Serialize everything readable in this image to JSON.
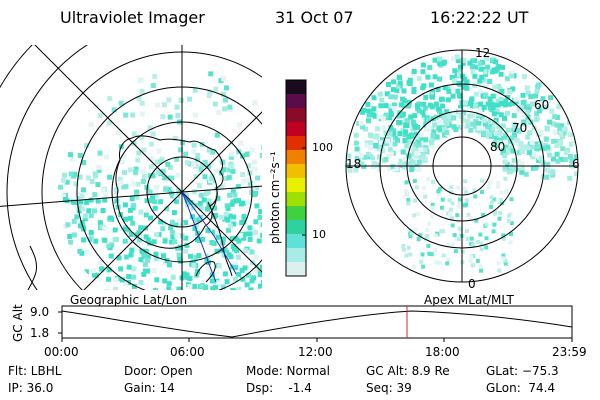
{
  "header": {
    "title": "Ultraviolet Imager",
    "date": "31 Oct 07",
    "time": "16:22:22 UT"
  },
  "colorbar": {
    "label": "photon cm⁻²s⁻¹",
    "ticks": [
      "100",
      "10"
    ],
    "colors": [
      "#1a0a1e",
      "#5a0c4a",
      "#8a0a2a",
      "#c00020",
      "#e03000",
      "#f08000",
      "#f0c000",
      "#e8f000",
      "#a0e000",
      "#40d040",
      "#30d0a0",
      "#60e0d8",
      "#a8ece8",
      "#dcf0f0"
    ]
  },
  "left_map": {
    "label": "Geographic Lat/Lon"
  },
  "right_map": {
    "label": "Apex MLat/MLT",
    "mlt_labels": {
      "top": "12",
      "left": "18",
      "right": "6",
      "bottom": "0"
    },
    "lat_labels": [
      "60",
      "70",
      "80"
    ]
  },
  "plot": {
    "ylabel": "GC Alt",
    "y_ticks": [
      "9.0",
      "1.8"
    ],
    "x_ticks": [
      "00:00",
      "06:00",
      "12:00",
      "18:00",
      "23:59"
    ]
  },
  "status": {
    "filter": "Flt: LBHL",
    "ip": "IP: 36.0",
    "door": "Door: Open",
    "gain": "Gain: 14",
    "mode": "Mode: Normal",
    "dsp": "Dsp:    -1.4",
    "gc_alt": "GC Alt: 8.9 Re",
    "seq": "Seq: 39",
    "glat": "GLat: −75.3",
    "glon": "GLon:  74.4"
  },
  "colors": {
    "aurora": "#40e0c8",
    "aurora_light": "#b8eee8",
    "marker": "#c03030",
    "track": "#2030c0"
  }
}
